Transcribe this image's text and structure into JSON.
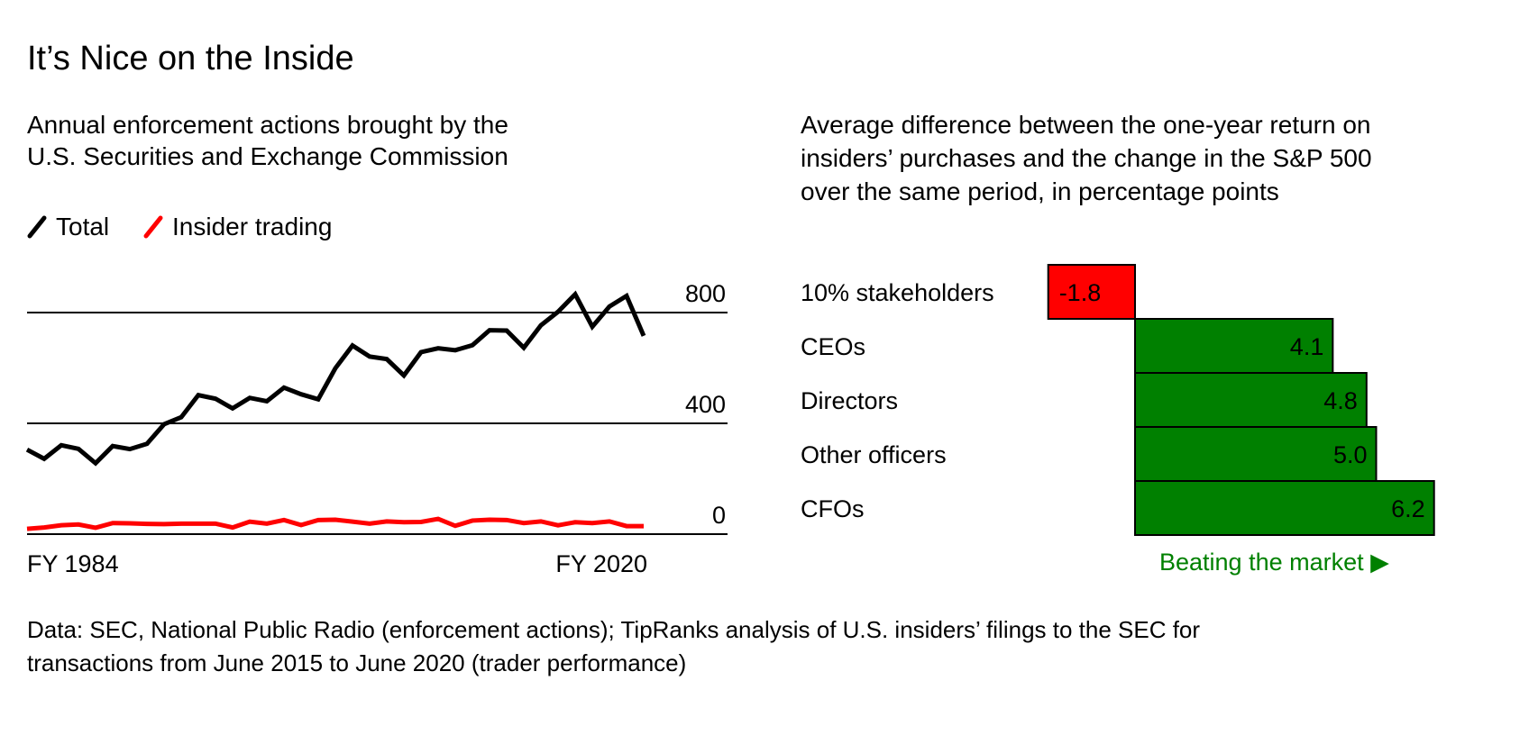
{
  "title": "It’s Nice on the Inside",
  "footer": {
    "line1": "Data: SEC, National Public Radio (enforcement actions); TipRanks analysis of U.S. insiders’ filings to the SEC for",
    "line2": "transactions from June 2015 to June 2020 (trader performance)"
  },
  "chart_data": [
    {
      "type": "line",
      "subtitle_lines": [
        "Annual enforcement actions brought by the",
        "U.S. Securities and Exchange Commission"
      ],
      "xlim": [
        1984,
        2020
      ],
      "ylim": [
        0,
        800
      ],
      "yticks": [
        0,
        400,
        800
      ],
      "ytick_labels": [
        "0",
        "400",
        "800"
      ],
      "xtick_labels": [
        "FY 1984",
        "FY 2020"
      ],
      "legend_placement": "top-left",
      "grid": true,
      "x": [
        1984,
        1985,
        1986,
        1987,
        1988,
        1989,
        1990,
        1991,
        1992,
        1993,
        1994,
        1995,
        1996,
        1997,
        1998,
        1999,
        2000,
        2001,
        2002,
        2003,
        2004,
        2005,
        2006,
        2007,
        2008,
        2009,
        2010,
        2011,
        2012,
        2013,
        2014,
        2015,
        2016,
        2017,
        2018,
        2019,
        2020
      ],
      "series": [
        {
          "name": "Total",
          "color": "#000000",
          "values": [
            305,
            272,
            321,
            308,
            256,
            318,
            307,
            326,
            397,
            422,
            502,
            489,
            454,
            492,
            480,
            529,
            505,
            487,
            599,
            681,
            641,
            632,
            573,
            657,
            671,
            664,
            682,
            736,
            735,
            673,
            754,
            803,
            866,
            749,
            822,
            860,
            716
          ]
        },
        {
          "name": "Insider trading",
          "color": "#ff0000",
          "values": [
            19,
            24,
            32,
            35,
            23,
            40,
            39,
            37,
            36,
            38,
            38,
            38,
            24,
            45,
            38,
            51,
            33,
            51,
            52,
            45,
            38,
            46,
            43,
            44,
            55,
            30,
            49,
            52,
            51,
            40,
            46,
            32,
            43,
            40,
            46,
            29,
            29
          ]
        }
      ]
    },
    {
      "type": "bar",
      "orientation": "horizontal",
      "subtitle_lines": [
        "Average difference between the one-year return on",
        "insiders’ purchases and the change in the S&P 500",
        "over the same period, in percentage points"
      ],
      "categories": [
        "10% stakeholders",
        "CEOs",
        "Directors",
        "Other officers",
        "CFOs"
      ],
      "values": [
        -1.8,
        4.1,
        4.8,
        5.0,
        6.2
      ],
      "value_labels": [
        "-1.8",
        "4.1",
        "4.8",
        "5.0",
        "6.2"
      ],
      "positive_color": "#008000",
      "negative_color": "#ff0000",
      "annotation": "Beating the market ▶",
      "annotation_color": "#008000"
    }
  ]
}
